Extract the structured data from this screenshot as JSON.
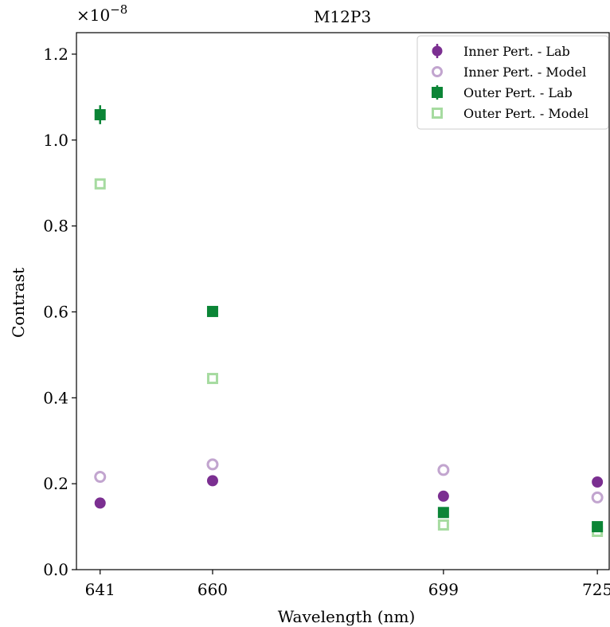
{
  "chart_data": {
    "type": "scatter",
    "title": "M12P3",
    "xlabel": "Wavelength (nm)",
    "ylabel": "Contrast",
    "y_scale_label": "×10",
    "y_scale_exponent": "−8",
    "x_ticks": [
      641,
      660,
      699,
      725
    ],
    "x_tick_labels": [
      "641",
      "660",
      "699",
      "725"
    ],
    "xlim": [
      637,
      727
    ],
    "ylim": [
      0.0,
      1.25
    ],
    "y_ticks": [
      0.0,
      0.2,
      0.4,
      0.6,
      0.8,
      1.0,
      1.2
    ],
    "y_tick_labels": [
      "0.0",
      "0.2",
      "0.4",
      "0.6",
      "0.8",
      "1.0",
      "1.2"
    ],
    "grid": false,
    "legend_position": "top-right",
    "series": [
      {
        "name": "Inner Pert. - Lab",
        "marker": "circle",
        "filled": true,
        "color": "#7b2f91",
        "x": [
          641,
          660,
          699,
          725
        ],
        "y": [
          0.155,
          0.207,
          0.171,
          0.204
        ],
        "yerr": [
          0.002,
          0.002,
          0.002,
          0.002
        ]
      },
      {
        "name": "Inner Pert. - Model",
        "marker": "circle",
        "filled": false,
        "color": "#c2a5cf",
        "x": [
          641,
          660,
          699,
          725
        ],
        "y": [
          0.216,
          0.245,
          0.232,
          0.168
        ]
      },
      {
        "name": "Outer Pert. - Lab",
        "marker": "square",
        "filled": true,
        "color": "#0b8536",
        "x": [
          641,
          660,
          699,
          725
        ],
        "y": [
          1.059,
          0.601,
          0.133,
          0.1
        ],
        "yerr": [
          0.022,
          0.004,
          0.004,
          0.004
        ]
      },
      {
        "name": "Outer Pert. - Model",
        "marker": "square",
        "filled": false,
        "color": "#a6dba0",
        "x": [
          641,
          660,
          699,
          725
        ],
        "y": [
          0.898,
          0.445,
          0.104,
          0.089
        ]
      }
    ]
  }
}
